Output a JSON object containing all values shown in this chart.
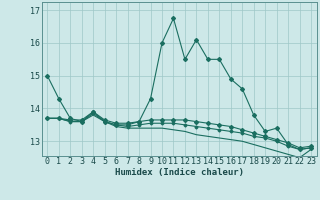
{
  "xlabel": "Humidex (Indice chaleur)",
  "x_values": [
    0,
    1,
    2,
    3,
    4,
    5,
    6,
    7,
    8,
    9,
    10,
    11,
    12,
    13,
    14,
    15,
    16,
    17,
    18,
    19,
    20,
    21,
    22,
    23
  ],
  "line1": [
    15.0,
    14.3,
    13.7,
    13.6,
    13.9,
    13.6,
    13.5,
    13.5,
    13.6,
    14.3,
    16.0,
    16.75,
    15.5,
    16.1,
    15.5,
    15.5,
    14.9,
    14.6,
    13.8,
    13.3,
    13.4,
    12.9,
    12.75,
    12.8
  ],
  "line2": [
    13.7,
    13.7,
    13.65,
    13.65,
    13.9,
    13.65,
    13.55,
    13.55,
    13.6,
    13.65,
    13.65,
    13.65,
    13.65,
    13.6,
    13.55,
    13.5,
    13.45,
    13.35,
    13.25,
    13.15,
    13.05,
    12.95,
    12.8,
    12.85
  ],
  "line3": [
    13.7,
    13.7,
    13.6,
    13.6,
    13.85,
    13.6,
    13.5,
    13.45,
    13.5,
    13.55,
    13.55,
    13.55,
    13.5,
    13.45,
    13.4,
    13.35,
    13.3,
    13.25,
    13.15,
    13.1,
    13.0,
    12.85,
    12.75,
    12.8
  ],
  "line4": [
    13.7,
    13.7,
    13.6,
    13.6,
    13.8,
    13.6,
    13.45,
    13.4,
    13.4,
    13.4,
    13.4,
    13.35,
    13.3,
    13.2,
    13.15,
    13.1,
    13.05,
    13.0,
    12.9,
    12.8,
    12.7,
    12.6,
    12.5,
    12.75
  ],
  "bg_color": "#cde8e8",
  "grid_color": "#9fc8c8",
  "line_color": "#1a6e60",
  "ylim_min": 12.55,
  "ylim_max": 17.25,
  "yticks": [
    13,
    14,
    15,
    16,
    17
  ],
  "tick_fontsize": 6.0,
  "xlabel_fontsize": 6.5
}
